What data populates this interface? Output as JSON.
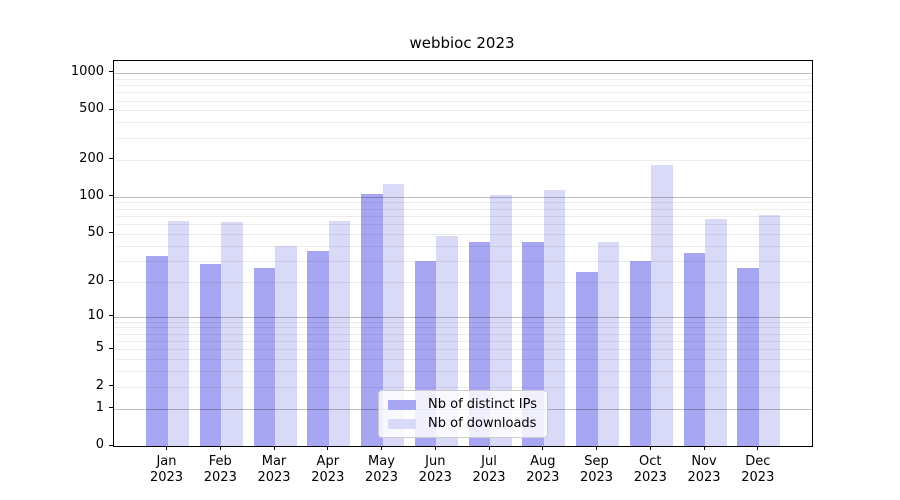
{
  "title": "webbioc 2023",
  "chart_data": {
    "type": "bar",
    "categories": [
      "Jan",
      "Feb",
      "Mar",
      "Apr",
      "May",
      "Jun",
      "Jul",
      "Aug",
      "Sep",
      "Oct",
      "Nov",
      "Dec"
    ],
    "year_label": "2023",
    "series": [
      {
        "name": "Nb of distinct IPs",
        "color": "#a6a6f2",
        "values": [
          33,
          28,
          26,
          36,
          106,
          30,
          43,
          43,
          24,
          30,
          35,
          26
        ]
      },
      {
        "name": "Nb of downloads",
        "color": "#d9d9f8",
        "values": [
          64,
          62,
          40,
          64,
          127,
          48,
          104,
          114,
          43,
          180,
          66,
          71
        ]
      }
    ],
    "yticks": [
      0,
      1,
      2,
      5,
      10,
      20,
      50,
      100,
      200,
      500,
      1000
    ],
    "scale": "log1p",
    "ylim": [
      0,
      1230
    ],
    "grid": true,
    "legend_position": "lower center",
    "xlabel": "",
    "ylabel": ""
  },
  "legend": {
    "items": [
      {
        "label": "Nb of distinct IPs"
      },
      {
        "label": "Nb of downloads"
      }
    ]
  }
}
